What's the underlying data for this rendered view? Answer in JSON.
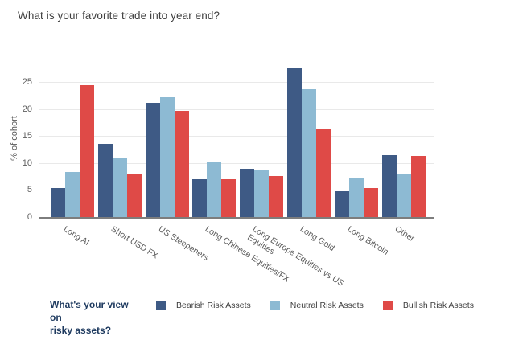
{
  "title": "What is your favorite trade into year end?",
  "chart_data": {
    "type": "bar",
    "title": "What is your favorite trade into year end?",
    "xlabel": "",
    "ylabel": "% of cohort",
    "ylim": [
      0,
      28.3
    ],
    "yticks": [
      0,
      5,
      10,
      15,
      20,
      25
    ],
    "grid": true,
    "legend_position": "bottom",
    "legend_title": "What's your view on\nrisky assets?",
    "categories": [
      "Long AI",
      "Short USD FX",
      "US Steepeners",
      "Long Chinese Equities/FX",
      "Long Europe Equities vs US\nEquities",
      "Long Gold",
      "Long Bitcoin",
      "Other"
    ],
    "series": [
      {
        "name": "Bearish Risk Assets",
        "color": "#3e5a85",
        "values": [
          5.3,
          13.6,
          21.1,
          7.0,
          8.9,
          27.7,
          4.7,
          11.5
        ]
      },
      {
        "name": "Neutral Risk Assets",
        "color": "#8dbad3",
        "values": [
          8.3,
          11.0,
          22.2,
          10.3,
          8.7,
          23.7,
          7.2,
          8.0
        ]
      },
      {
        "name": "Bullish Risk Assets",
        "color": "#df4a47",
        "values": [
          24.4,
          8.0,
          19.7,
          7.0,
          7.6,
          16.3,
          5.4,
          11.3
        ]
      }
    ]
  },
  "colors": {
    "grid": "#e9e9e9",
    "axis": "#7d7d7d",
    "tick_text": "#606060",
    "title_text": "#3f3f3f",
    "legend_title_text": "#1e3a5f"
  }
}
